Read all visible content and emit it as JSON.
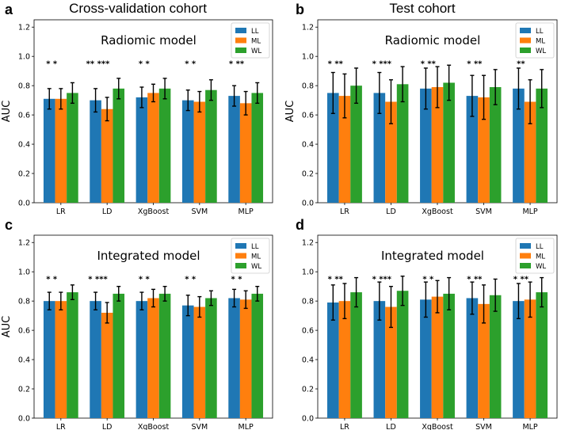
{
  "column_titles": [
    "Cross-validation cohort",
    "Test cohort"
  ],
  "chart_data": [
    {
      "panel": "a",
      "type": "bar",
      "title": "Radiomic model",
      "ylabel": "AUC",
      "xlabel": "",
      "ylim": [
        0,
        1.25
      ],
      "yticks": [
        "0.0",
        "0.2",
        "0.4",
        "0.6",
        "0.8",
        "1.0",
        "1.2"
      ],
      "categories": [
        "LR",
        "LD",
        "XgBoost",
        "SVM",
        "MLP"
      ],
      "series": [
        {
          "name": "LL",
          "color": "#1f77b4",
          "values": [
            0.71,
            0.7,
            0.72,
            0.7,
            0.73
          ],
          "err": [
            0.07,
            0.08,
            0.07,
            0.07,
            0.07
          ]
        },
        {
          "name": "ML",
          "color": "#ff7f0e",
          "values": [
            0.71,
            0.64,
            0.75,
            0.69,
            0.68
          ],
          "err": [
            0.07,
            0.08,
            0.06,
            0.07,
            0.08
          ]
        },
        {
          "name": "WL",
          "color": "#2ca02c",
          "values": [
            0.75,
            0.78,
            0.78,
            0.77,
            0.75
          ],
          "err": [
            0.07,
            0.07,
            0.07,
            0.07,
            0.07
          ]
        }
      ],
      "significance": [
        "*  *",
        "** ***",
        "*  *",
        "*  *",
        "*  **"
      ],
      "legend": "top-right"
    },
    {
      "panel": "b",
      "type": "bar",
      "title": "Radiomic model",
      "ylabel": "AUC",
      "xlabel": "",
      "ylim": [
        0,
        1.25
      ],
      "yticks": [
        "0.0",
        "0.2",
        "0.4",
        "0.6",
        "0.8",
        "1.0",
        "1.2"
      ],
      "categories": [
        "LR",
        "LD",
        "XgBoost",
        "SVM",
        "MLP"
      ],
      "series": [
        {
          "name": "LL",
          "color": "#1f77b4",
          "values": [
            0.75,
            0.75,
            0.78,
            0.73,
            0.78
          ],
          "err": [
            0.14,
            0.14,
            0.14,
            0.14,
            0.14
          ]
        },
        {
          "name": "ML",
          "color": "#ff7f0e",
          "values": [
            0.73,
            0.69,
            0.79,
            0.72,
            0.69
          ],
          "err": [
            0.15,
            0.15,
            0.14,
            0.15,
            0.15
          ]
        },
        {
          "name": "WL",
          "color": "#2ca02c",
          "values": [
            0.8,
            0.81,
            0.82,
            0.79,
            0.78
          ],
          "err": [
            0.12,
            0.12,
            0.12,
            0.12,
            0.13
          ]
        }
      ],
      "significance": [
        "*  **",
        "* ***",
        "*  **",
        "*  **",
        "**"
      ],
      "legend": "top-right"
    },
    {
      "panel": "c",
      "type": "bar",
      "title": "Integrated model",
      "ylabel": "AUC",
      "xlabel": "",
      "ylim": [
        0,
        1.25
      ],
      "yticks": [
        "0.0",
        "0.2",
        "0.4",
        "0.6",
        "0.8",
        "1.0",
        "1.2"
      ],
      "categories": [
        "LR",
        "LD",
        "XgBoost",
        "SVM",
        "MLP"
      ],
      "series": [
        {
          "name": "LL",
          "color": "#1f77b4",
          "values": [
            0.8,
            0.8,
            0.8,
            0.77,
            0.82
          ],
          "err": [
            0.06,
            0.06,
            0.06,
            0.07,
            0.06
          ]
        },
        {
          "name": "ML",
          "color": "#ff7f0e",
          "values": [
            0.8,
            0.72,
            0.82,
            0.76,
            0.81
          ],
          "err": [
            0.06,
            0.07,
            0.06,
            0.07,
            0.06
          ]
        },
        {
          "name": "WL",
          "color": "#2ca02c",
          "values": [
            0.86,
            0.85,
            0.85,
            0.82,
            0.85
          ],
          "err": [
            0.05,
            0.05,
            0.05,
            0.05,
            0.05
          ]
        }
      ],
      "significance": [
        "*  *",
        "* ***",
        "*  *",
        "*  *",
        "*  *"
      ],
      "legend": "top-right"
    },
    {
      "panel": "d",
      "type": "bar",
      "title": "Integrated model",
      "ylabel": "",
      "xlabel": "",
      "ylim": [
        0,
        1.25
      ],
      "yticks": [
        "0.0",
        "0.2",
        "0.4",
        "0.6",
        "0.8",
        "1.0",
        "1.2"
      ],
      "categories": [
        "LR",
        "LD",
        "XgBoost",
        "SVM",
        "MLP"
      ],
      "series": [
        {
          "name": "LL",
          "color": "#1f77b4",
          "values": [
            0.79,
            0.8,
            0.81,
            0.82,
            0.8
          ],
          "err": [
            0.12,
            0.13,
            0.12,
            0.11,
            0.12
          ]
        },
        {
          "name": "ML",
          "color": "#ff7f0e",
          "values": [
            0.8,
            0.76,
            0.83,
            0.78,
            0.81
          ],
          "err": [
            0.12,
            0.14,
            0.11,
            0.13,
            0.12
          ]
        },
        {
          "name": "WL",
          "color": "#2ca02c",
          "values": [
            0.86,
            0.87,
            0.85,
            0.84,
            0.86
          ],
          "err": [
            0.1,
            0.1,
            0.11,
            0.11,
            0.1
          ]
        }
      ],
      "significance": [
        "*  **",
        "* ***",
        "*  *",
        "*  **",
        "*  **"
      ],
      "legend": "top-right"
    }
  ]
}
